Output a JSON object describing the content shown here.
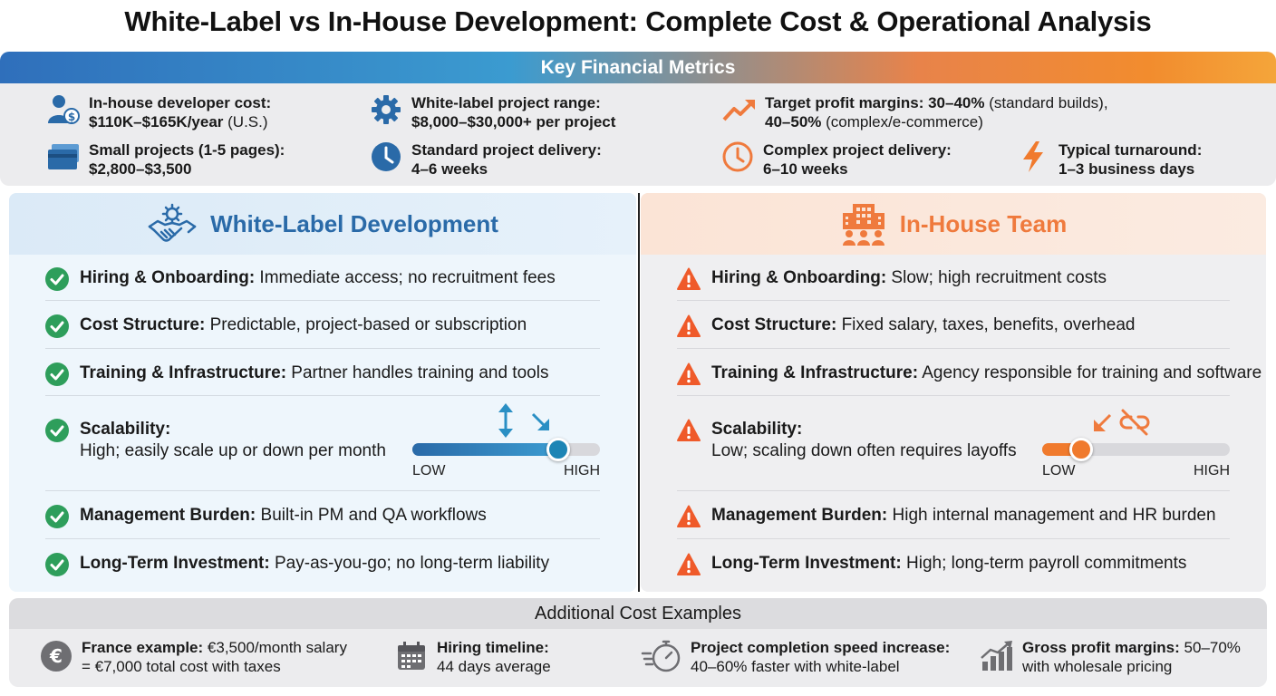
{
  "title": "White-Label vs In-House Development: Complete Cost & Operational Analysis",
  "metrics": {
    "heading": "Key Financial Metrics",
    "items": [
      {
        "label": "In-house developer cost:",
        "value": "$110K–$165K/year",
        "suffix": " (U.S.)",
        "icon": "developer-cost-icon"
      },
      {
        "label": "White-label project range:",
        "value": "$8,000–$30,000+ per project",
        "suffix": "",
        "icon": "gear-icon"
      },
      {
        "label": "Target profit margins: 30–40%",
        "value": "40–50%",
        "label_suffix": " (standard builds),",
        "suffix": " (complex/e-commerce)",
        "icon": "trend-up-icon"
      },
      {
        "label": "Small projects (1-5 pages):",
        "value": "$2,800–$3,500",
        "suffix": "",
        "icon": "cards-icon"
      },
      {
        "label": "Standard project delivery:",
        "value": "4–6 weeks",
        "suffix": "",
        "icon": "clock-filled-icon"
      },
      {
        "label": "Complex project delivery:",
        "value": "6–10 weeks",
        "suffix": "",
        "icon": "clock-outline-icon"
      },
      {
        "label": "Typical turnaround:",
        "value": "1–3 business days",
        "suffix": "",
        "icon": "lightning-icon"
      }
    ]
  },
  "white_label": {
    "heading": "White-Label Development",
    "rows": [
      {
        "label": "Hiring & Onboarding:",
        "text": " Immediate access; no recruitment fees"
      },
      {
        "label": "Cost Structure:",
        "text": " Predictable, project-based or subscription"
      },
      {
        "label": "Training & Infrastructure:",
        "text": " Partner handles training and tools"
      },
      {
        "label": "Scalability:",
        "text": "High; easily scale up or down per month"
      },
      {
        "label": "Management Burden:",
        "text": " Built-in PM and QA workflows"
      },
      {
        "label": "Long-Term Investment:",
        "text": " Pay-as-you-go; no long-term liability"
      }
    ],
    "slider": {
      "low": "LOW",
      "high": "HIGH",
      "level": 0.78
    }
  },
  "in_house": {
    "heading": "In-House Team",
    "rows": [
      {
        "label": "Hiring & Onboarding:",
        "text": " Slow; high recruitment costs"
      },
      {
        "label": "Cost Structure:",
        "text": " Fixed salary, taxes, benefits, overhead"
      },
      {
        "label": "Training & Infrastructure:",
        "text": " Agency responsible for training and software"
      },
      {
        "label": "Scalability:",
        "text": "Low; scaling down often requires layoffs"
      },
      {
        "label": "Management Burden:",
        "text": " High internal management and HR burden"
      },
      {
        "label": "Long-Term Investment:",
        "text": " High; long-term payroll commitments"
      }
    ],
    "slider": {
      "low": "LOW",
      "high": "HIGH",
      "level": 0.21
    }
  },
  "additional": {
    "heading": "Additional Cost Examples",
    "items": [
      {
        "label": "France example:",
        "text": " €3,500/month salary",
        "line2": "= €7,000 total cost with taxes",
        "icon": "euro-icon"
      },
      {
        "label": "Hiring timeline:",
        "text": "",
        "line2": "44 days average",
        "icon": "calendar-icon"
      },
      {
        "label": "Project completion speed increase:",
        "text": "",
        "line2": "40–60% faster with white-label",
        "icon": "stopwatch-icon"
      },
      {
        "label": "Gross profit margins:",
        "text": " 50–70%",
        "line2": "with wholesale pricing",
        "icon": "bar-growth-icon"
      }
    ]
  },
  "colors": {
    "blue": "#2a6aa8",
    "orange": "#ef7a3d",
    "green": "#2e9e5b"
  }
}
